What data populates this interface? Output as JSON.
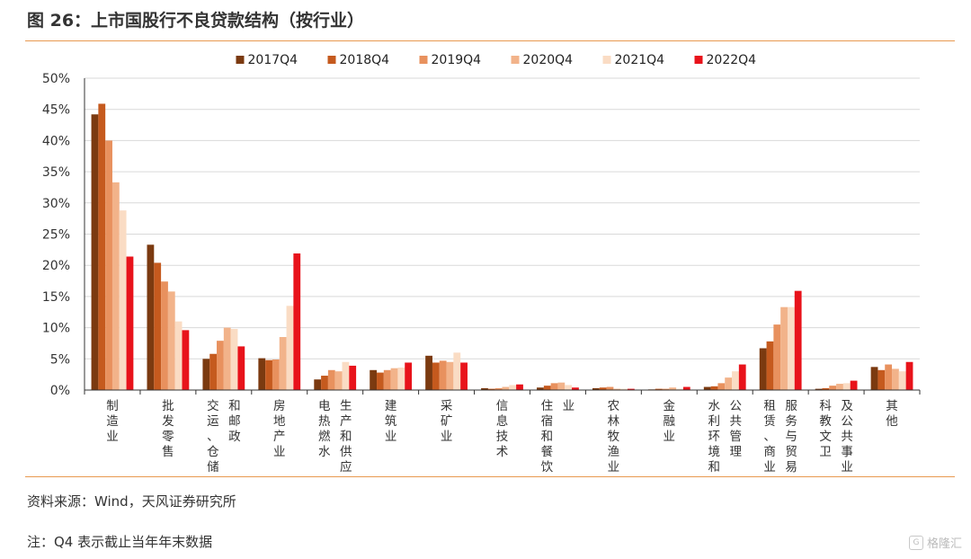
{
  "figure_title": "图 26：上市国股行不良贷款结构（按行业）",
  "source_note": "资料来源：Wind，天风证券研究所",
  "remark_note": "注：Q4 表示截止当年年末数据",
  "watermark_text": "格隆汇",
  "watermark_icon": "G",
  "chart_data": {
    "type": "bar",
    "title": "",
    "xlabel": "",
    "ylabel": "",
    "ylim": [
      0,
      0.5
    ],
    "yticks": [
      0,
      0.05,
      0.1,
      0.15,
      0.2,
      0.25,
      0.3,
      0.35,
      0.4,
      0.45,
      0.5
    ],
    "ytick_labels": [
      "0%",
      "5%",
      "10%",
      "15%",
      "20%",
      "25%",
      "30%",
      "35%",
      "40%",
      "45%",
      "50%"
    ],
    "grid": true,
    "legend_position": "top-center",
    "categories": [
      "制造业",
      "批发零售",
      "交运、仓储和邮政",
      "房地产业",
      "电热燃水生产和供应",
      "建筑业",
      "采矿业",
      "信息技术",
      "住宿和餐饮业",
      "农林牧渔业",
      "金融业",
      "水利环境和公共管理",
      "租赁、商业服务与贸易",
      "科教文卫及公共事业",
      "其他"
    ],
    "category_label_columns": [
      [
        "制造业"
      ],
      [
        "批发零售"
      ],
      [
        "交运、仓储",
        "和邮政"
      ],
      [
        "房地产业"
      ],
      [
        "电热燃水",
        "生产和供应"
      ],
      [
        "建筑业"
      ],
      [
        "采矿业"
      ],
      [
        "信息技术"
      ],
      [
        "住宿和餐饮",
        "业"
      ],
      [
        "农林牧渔业"
      ],
      [
        "金融业"
      ],
      [
        "水利环境和",
        "公共管理"
      ],
      [
        "租赁、商业",
        "服务与贸易"
      ],
      [
        "科教文卫",
        "及公共事业"
      ],
      [
        "其他"
      ]
    ],
    "series": [
      {
        "name": "2017Q4",
        "color": "#7b3a10",
        "values": [
          0.442,
          0.233,
          0.05,
          0.051,
          0.017,
          0.032,
          0.055,
          0.003,
          0.004,
          0.003,
          0.001,
          0.005,
          0.067,
          0.002,
          0.037
        ]
      },
      {
        "name": "2018Q4",
        "color": "#c55a1e",
        "values": [
          0.459,
          0.204,
          0.058,
          0.048,
          0.023,
          0.028,
          0.044,
          0.002,
          0.007,
          0.004,
          0.002,
          0.006,
          0.078,
          0.003,
          0.032
        ]
      },
      {
        "name": "2019Q4",
        "color": "#e8915e",
        "values": [
          0.4,
          0.174,
          0.079,
          0.049,
          0.032,
          0.032,
          0.047,
          0.003,
          0.011,
          0.005,
          0.002,
          0.011,
          0.105,
          0.007,
          0.041
        ]
      },
      {
        "name": "2020Q4",
        "color": "#f2b38a",
        "values": [
          0.333,
          0.158,
          0.1,
          0.085,
          0.03,
          0.035,
          0.045,
          0.005,
          0.012,
          0.002,
          0.004,
          0.02,
          0.133,
          0.01,
          0.034
        ]
      },
      {
        "name": "2021Q4",
        "color": "#fadcc4",
        "values": [
          0.288,
          0.11,
          0.098,
          0.135,
          0.045,
          0.036,
          0.06,
          0.008,
          0.008,
          0.002,
          0.002,
          0.03,
          0.133,
          0.011,
          0.03
        ]
      },
      {
        "name": "2022Q4",
        "color": "#e8131b",
        "values": [
          0.214,
          0.096,
          0.07,
          0.219,
          0.039,
          0.044,
          0.044,
          0.009,
          0.004,
          0.002,
          0.005,
          0.041,
          0.159,
          0.015,
          0.045
        ]
      }
    ]
  }
}
